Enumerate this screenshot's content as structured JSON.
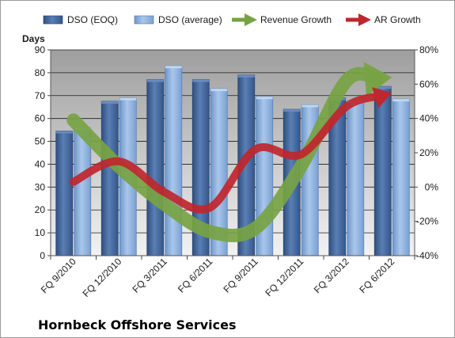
{
  "chart_data": {
    "type": "bar",
    "title": "",
    "company_label": "Hornbeck Offshore Services",
    "ylabel": "Days",
    "ylim": [
      0,
      90
    ],
    "yticks": [
      0,
      10,
      20,
      30,
      40,
      50,
      60,
      70,
      80,
      90
    ],
    "y2lim": [
      -40,
      80
    ],
    "y2ticks": [
      "-40%",
      "-20%",
      "0%",
      "20%",
      "40%",
      "60%",
      "80%"
    ],
    "y2tick_values": [
      -40,
      -20,
      0,
      20,
      40,
      60,
      80
    ],
    "categories": [
      "FQ 9/2010",
      "FQ 12/2010",
      "FQ 3/2011",
      "FQ 6/2011",
      "FQ 9/2011",
      "FQ 12/2011",
      "FQ 3/2012",
      "FQ 6/2012"
    ],
    "grid": true,
    "legend_position": "top",
    "series": [
      {
        "name": "DSO (EOQ)",
        "kind": "bar",
        "axis": "left",
        "color": "#4a6fa5",
        "values": [
          54.5,
          67.5,
          77,
          77,
          79,
          64,
          69,
          74
        ]
      },
      {
        "name": "DSO (average)",
        "kind": "bar",
        "axis": "left",
        "color": "#8db3e2",
        "values": [
          56,
          69,
          83,
          73,
          69.5,
          66,
          68,
          68.5
        ]
      },
      {
        "name": "Revenue Growth",
        "kind": "line-arrow",
        "axis": "right",
        "color": "#77a343",
        "values": [
          39,
          12,
          -10,
          -26,
          -24,
          12,
          62,
          64
        ]
      },
      {
        "name": "AR Growth",
        "kind": "line-arrow",
        "axis": "right",
        "color": "#c0262d",
        "values": [
          3,
          15,
          -3,
          -12,
          22,
          19,
          47,
          55
        ]
      }
    ]
  }
}
